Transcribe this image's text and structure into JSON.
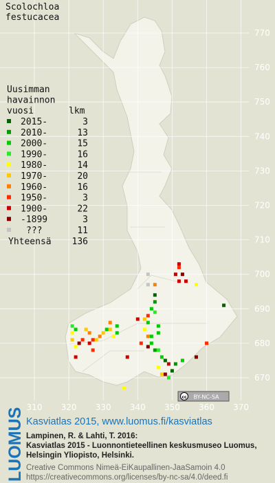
{
  "title_lines": [
    "Scolochloa",
    "festucacea"
  ],
  "legend": {
    "heading_lines": [
      "Uusimman",
      "havainnon",
      "vuosi"
    ],
    "count_heading": "lkm",
    "items": [
      {
        "label": "2015-",
        "count": 3,
        "color": "#006400"
      },
      {
        "label": "2010-",
        "count": 13,
        "color": "#009a00"
      },
      {
        "label": "2000-",
        "count": 15,
        "color": "#00cc00"
      },
      {
        "label": "1990-",
        "count": 16,
        "color": "#22ee22"
      },
      {
        "label": "1980-",
        "count": 14,
        "color": "#ffff00"
      },
      {
        "label": "1970-",
        "count": 20,
        "color": "#ffc800"
      },
      {
        "label": "1960-",
        "count": 16,
        "color": "#ff8000"
      },
      {
        "label": "1950-",
        "count": 3,
        "color": "#ff2a00"
      },
      {
        "label": "1900-",
        "count": 22,
        "color": "#cc0000"
      },
      {
        "label": "-1899",
        "count": 3,
        "color": "#880000"
      },
      {
        "label": "???",
        "count": 11,
        "color": "#c4c4c4"
      }
    ],
    "total_label": "Yhteensä",
    "total": 136
  },
  "xticks": [
    310,
    320,
    330,
    340,
    350,
    360,
    370
  ],
  "yticks": [
    670,
    680,
    690,
    700,
    710,
    720,
    730,
    740,
    750,
    760,
    770
  ],
  "points": [
    [
      352,
      703,
      8
    ],
    [
      352,
      702,
      7
    ],
    [
      351,
      700,
      8
    ],
    [
      353,
      700,
      9
    ],
    [
      352,
      698,
      8
    ],
    [
      354,
      698,
      8
    ],
    [
      343,
      700,
      10
    ],
    [
      343,
      697,
      10
    ],
    [
      345,
      697,
      6
    ],
    [
      357,
      697,
      4
    ],
    [
      365,
      691,
      0
    ],
    [
      345,
      694,
      0
    ],
    [
      345,
      692,
      1
    ],
    [
      344,
      690,
      2
    ],
    [
      345,
      689,
      3
    ],
    [
      343,
      688,
      7
    ],
    [
      342,
      687,
      5
    ],
    [
      343,
      686,
      2
    ],
    [
      346,
      685,
      2
    ],
    [
      346,
      683,
      2
    ],
    [
      342,
      684,
      4
    ],
    [
      343,
      682,
      6
    ],
    [
      344,
      680,
      2
    ],
    [
      346,
      678,
      3
    ],
    [
      347,
      676,
      2
    ],
    [
      348,
      675,
      0
    ],
    [
      349,
      674,
      8
    ],
    [
      348,
      671,
      9
    ],
    [
      350,
      672,
      0
    ],
    [
      347,
      671,
      5
    ],
    [
      345,
      678,
      1
    ],
    [
      343,
      679,
      9
    ],
    [
      341,
      680,
      7
    ],
    [
      337,
      676,
      8
    ],
    [
      334,
      685,
      2
    ],
    [
      334,
      683,
      2
    ],
    [
      333,
      682,
      4
    ],
    [
      332,
      684,
      5
    ],
    [
      332,
      686,
      6
    ],
    [
      331,
      684,
      2
    ],
    [
      330,
      683,
      5
    ],
    [
      329,
      682,
      6
    ],
    [
      328,
      681,
      5
    ],
    [
      327,
      681,
      7
    ],
    [
      326,
      680,
      8
    ],
    [
      324,
      681,
      7
    ],
    [
      323,
      680,
      9
    ],
    [
      321,
      685,
      3
    ],
    [
      321,
      683,
      4
    ],
    [
      322,
      684,
      2
    ],
    [
      321,
      681,
      5
    ],
    [
      322,
      679,
      4
    ],
    [
      325,
      684,
      5
    ],
    [
      326,
      683,
      6
    ],
    [
      322,
      676,
      8
    ],
    [
      327,
      678,
      7
    ],
    [
      336,
      667,
      4
    ],
    [
      360,
      680,
      7
    ],
    [
      357,
      676,
      9
    ],
    [
      353,
      675,
      2
    ],
    [
      351,
      674,
      1
    ],
    [
      346,
      673,
      4
    ],
    [
      349,
      670,
      3
    ],
    [
      344,
      682,
      2
    ],
    [
      340,
      687,
      8
    ]
  ],
  "badge": "BY-NC-SA",
  "footer": {
    "logo": "LUOMUS",
    "link": "Kasviatlas 2015, www.luomus.fi/kasviatlas",
    "citation": [
      "Lampinen, R. & Lahti, T. 2016:",
      "Kasviatlas 2015 - Luonnontieteellinen keskusmuseo Luomus,",
      "Helsingin Yliopisto, Helsinki."
    ],
    "license": [
      "Creative Commons Nimeä-EiKaupallinen-JaaSamoin 4.0",
      "https://creativecommons.org/licenses/by-nc-sa/4.0/deed.fi"
    ]
  }
}
